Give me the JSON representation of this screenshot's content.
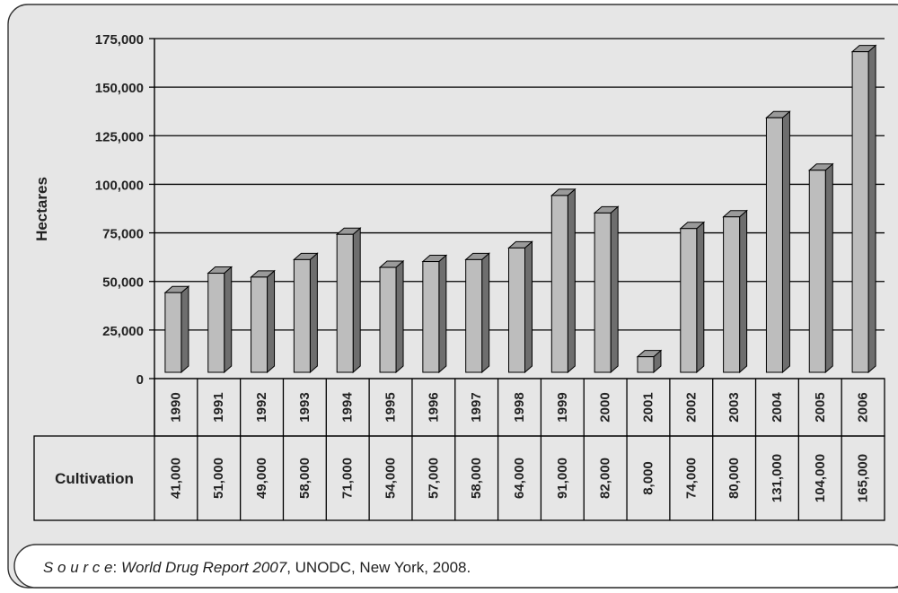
{
  "chart_data": {
    "type": "bar",
    "ylabel": "Hectares",
    "ylim": [
      0,
      175000
    ],
    "yticks": [
      0,
      25000,
      50000,
      75000,
      100000,
      125000,
      150000,
      175000
    ],
    "ytick_labels": [
      "0",
      "25,000",
      "50,000",
      "75,000",
      "100,000",
      "125,000",
      "150,000",
      "175,000"
    ],
    "grid": true,
    "categories": [
      "1990",
      "1991",
      "1992",
      "1993",
      "1994",
      "1995",
      "1996",
      "1997",
      "1998",
      "1999",
      "2000",
      "2001",
      "2002",
      "2003",
      "2004",
      "2005",
      "2006"
    ],
    "series": [
      {
        "name": "Cultivation",
        "values": [
          41000,
          51000,
          49000,
          58000,
          71000,
          54000,
          57000,
          58000,
          64000,
          91000,
          82000,
          8000,
          74000,
          80000,
          131000,
          104000,
          165000
        ]
      }
    ],
    "table_row_label": "Cultivation",
    "table_values": [
      "41,000",
      "51,000",
      "49,000",
      "58,000",
      "71,000",
      "54,000",
      "57,000",
      "58,000",
      "64,000",
      "91,000",
      "82,000",
      "8,000",
      "74,000",
      "80,000",
      "131,000",
      "104,000",
      "165,000"
    ],
    "colors": {
      "panel": "#e6e6e6",
      "bar_front": "#bdbdbd",
      "bar_side": "#6e6e6e",
      "bar_top": "#9a9a9a",
      "line": "#000000"
    }
  },
  "source": {
    "label": "S o u r c e",
    "separator": ": ",
    "title": "World Drug Report 2007",
    "rest": ", UNODC, New York, 2008."
  }
}
